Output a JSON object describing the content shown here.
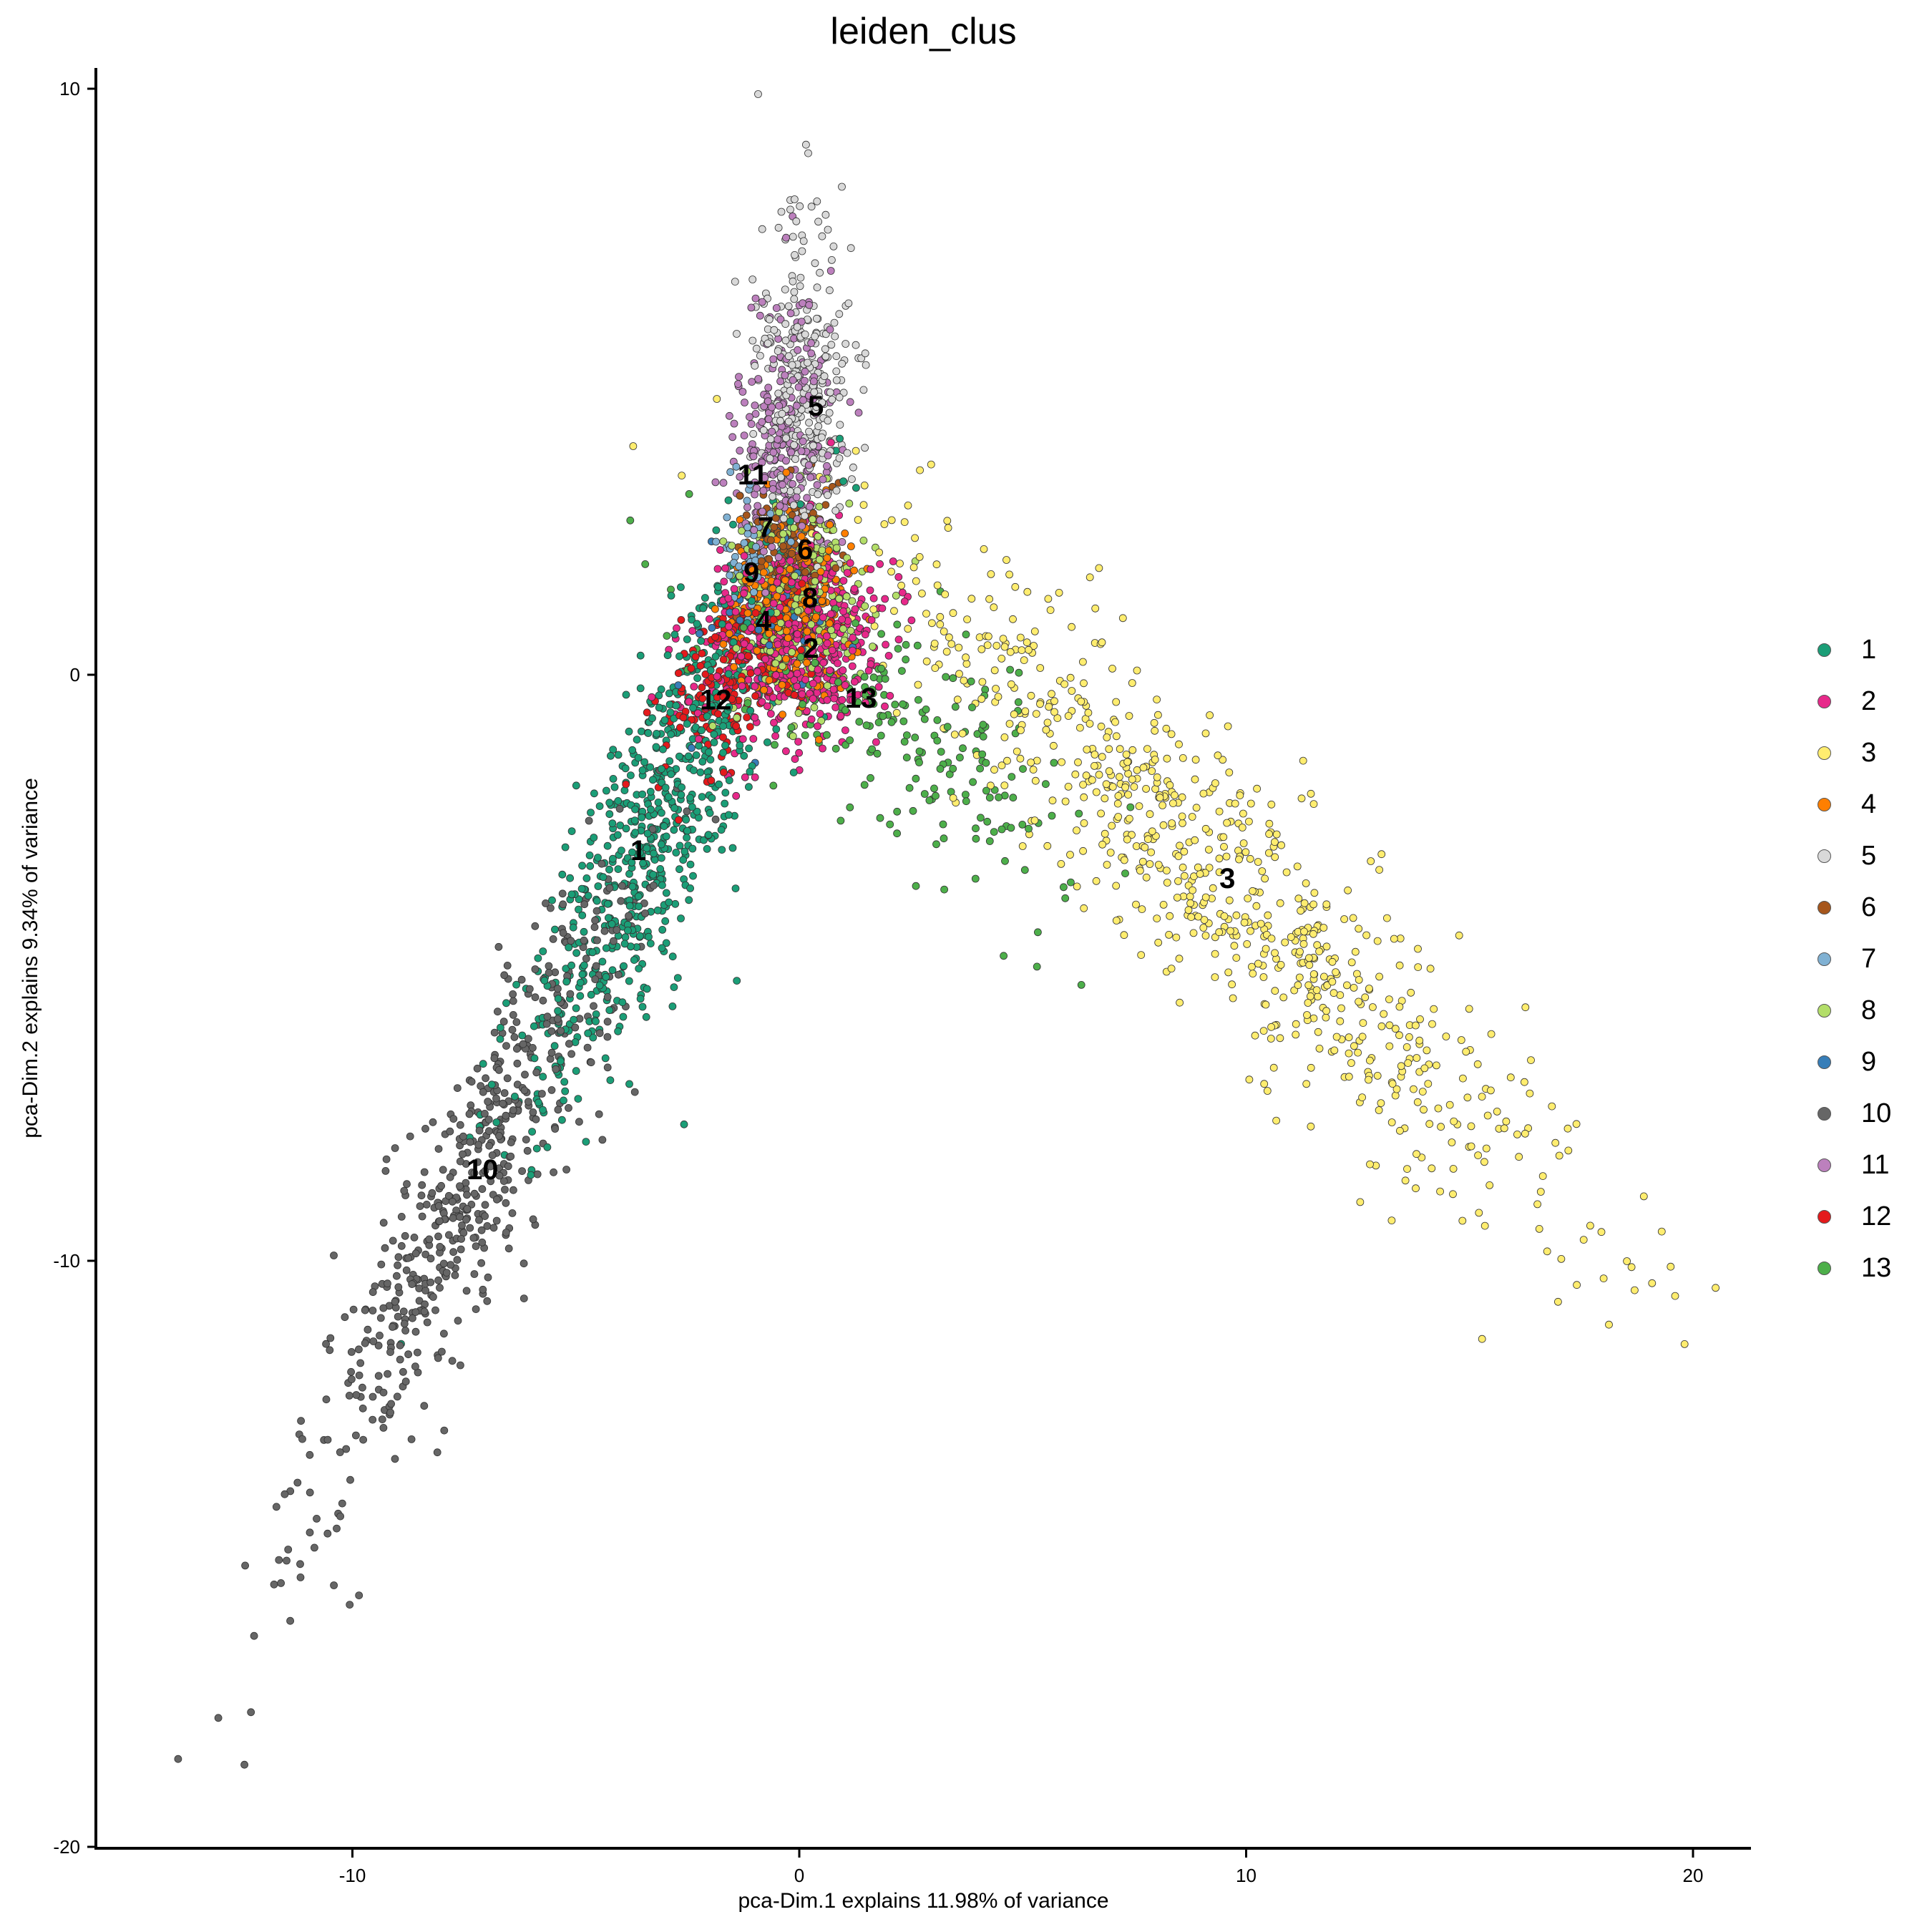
{
  "chart_data": {
    "type": "scatter",
    "title": "leiden_clus",
    "xlabel": "pca-Dim.1 explains 11.98% of variance",
    "ylabel": "pca-Dim.2 explains 9.34% of variance",
    "xlim": [
      -15.74,
      21.3
    ],
    "ylim": [
      -20.02,
      10.35
    ],
    "x_ticks": [
      -10,
      0,
      10,
      20
    ],
    "x_tick_labels": [
      "-10",
      "0",
      "10",
      "20"
    ],
    "y_ticks": [
      -20,
      -10,
      0,
      10
    ],
    "y_tick_labels": [
      "-20",
      "-10",
      "0",
      "10"
    ],
    "grid": false,
    "legend_position": "right",
    "legend_title": "",
    "series": [
      {
        "name": "1",
        "color": "#1B9E77",
        "label_pos": [
          -3.6,
          -2.99
        ],
        "center": [
          -3.2,
          -2.6
        ],
        "spread_along": 2.6,
        "spread_across": 0.75,
        "angle_deg": 59,
        "count": 700
      },
      {
        "name": "2",
        "color": "#E7298A",
        "label_pos": [
          0.26,
          0.46
        ],
        "center": [
          0.0,
          0.6
        ],
        "spread_along": 1.1,
        "spread_across": 0.85,
        "angle_deg": 20,
        "count": 520
      },
      {
        "name": "3",
        "color": "#FFED6F",
        "label_pos": [
          9.58,
          -3.47
        ],
        "center": [
          9.3,
          -3.4
        ],
        "spread_along": 4.6,
        "spread_across": 0.95,
        "angle_deg": -37,
        "count": 760
      },
      {
        "name": "4",
        "color": "#FF7F00",
        "label_pos": [
          -0.8,
          0.92
        ],
        "center": [
          -0.3,
          1.2
        ],
        "spread_along": 0.8,
        "spread_across": 0.65,
        "angle_deg": 80,
        "count": 300
      },
      {
        "name": "5",
        "color": "#D9D9D9",
        "label_pos": [
          0.37,
          4.59
        ],
        "center": [
          0.1,
          4.8
        ],
        "spread_along": 1.4,
        "spread_across": 0.55,
        "angle_deg": 88,
        "count": 330
      },
      {
        "name": "6",
        "color": "#A6561C",
        "label_pos": [
          0.13,
          2.14
        ],
        "center": [
          -0.2,
          2.2
        ],
        "spread_along": 0.6,
        "spread_across": 0.55,
        "angle_deg": 60,
        "count": 120
      },
      {
        "name": "7",
        "color": "#80B1D3",
        "label_pos": [
          -0.75,
          2.52
        ],
        "center": [
          -1.0,
          2.0
        ],
        "spread_along": 0.7,
        "spread_across": 0.35,
        "angle_deg": 80,
        "count": 60
      },
      {
        "name": "8",
        "color": "#B3DE69",
        "label_pos": [
          0.24,
          1.32
        ],
        "center": [
          0.0,
          1.3
        ],
        "spread_along": 0.9,
        "spread_across": 0.65,
        "angle_deg": 70,
        "count": 300
      },
      {
        "name": "9",
        "color": "#377EB8",
        "label_pos": [
          -1.07,
          1.75
        ],
        "center": [
          -0.8,
          1.0
        ],
        "spread_along": 0.9,
        "spread_across": 0.6,
        "angle_deg": 70,
        "count": 45
      },
      {
        "name": "10",
        "color": "#666666",
        "label_pos": [
          -7.09,
          -8.44
        ],
        "center": [
          -7.3,
          -8.6
        ],
        "spread_along": 3.1,
        "spread_across": 0.65,
        "angle_deg": 58,
        "count": 560
      },
      {
        "name": "11",
        "color": "#BC80BD",
        "label_pos": [
          -1.04,
          3.42
        ],
        "center": [
          -0.3,
          3.9
        ],
        "spread_along": 1.2,
        "spread_across": 0.55,
        "angle_deg": 85,
        "count": 290
      },
      {
        "name": "12",
        "color": "#E41A1C",
        "label_pos": [
          -1.87,
          -0.42
        ],
        "center": [
          -1.2,
          0.2
        ],
        "spread_along": 1.1,
        "spread_across": 0.55,
        "angle_deg": 40,
        "count": 230
      },
      {
        "name": "13",
        "color": "#4DAF4A",
        "label_pos": [
          1.38,
          -0.39
        ],
        "center": [
          2.3,
          -0.9
        ],
        "spread_along": 2.4,
        "spread_across": 0.8,
        "angle_deg": -28,
        "count": 220
      }
    ],
    "outliers": [
      {
        "cluster": "10",
        "points": [
          [
            -13.9,
            -18.5
          ],
          [
            -13.0,
            -17.8
          ],
          [
            -12.2,
            -16.4
          ],
          [
            -12.4,
            -15.2
          ],
          [
            -11.6,
            -15.5
          ],
          [
            -10.8,
            -14.4
          ]
        ]
      },
      {
        "cluster": "5",
        "points": [
          [
            0.2,
            8.9
          ],
          [
            -0.2,
            8.1
          ],
          [
            -0.4,
            7.9
          ],
          [
            0.1,
            7.4
          ]
        ]
      },
      {
        "cluster": "3",
        "points": [
          [
            19.6,
            -10.6
          ],
          [
            19.5,
            -10.1
          ],
          [
            18.0,
            -10.3
          ],
          [
            19.3,
            -9.5
          ],
          [
            17.7,
            -9.4
          ],
          [
            18.9,
            -8.9
          ]
        ]
      }
    ]
  },
  "plot": {
    "title": "leiden_clus",
    "x_title": "pca-Dim.1 explains 11.98% of variance",
    "y_title": "pca-Dim.2 explains 9.34% of variance"
  },
  "legend": {
    "items": [
      {
        "label": "1",
        "color": "#1B9E77"
      },
      {
        "label": "2",
        "color": "#E7298A"
      },
      {
        "label": "3",
        "color": "#FFED6F"
      },
      {
        "label": "4",
        "color": "#FF7F00"
      },
      {
        "label": "5",
        "color": "#D9D9D9"
      },
      {
        "label": "6",
        "color": "#A6561C"
      },
      {
        "label": "7",
        "color": "#80B1D3"
      },
      {
        "label": "8",
        "color": "#B3DE69"
      },
      {
        "label": "9",
        "color": "#377EB8"
      },
      {
        "label": "10",
        "color": "#666666"
      },
      {
        "label": "11",
        "color": "#BC80BD"
      },
      {
        "label": "12",
        "color": "#E41A1C"
      },
      {
        "label": "13",
        "color": "#4DAF4A"
      }
    ]
  }
}
